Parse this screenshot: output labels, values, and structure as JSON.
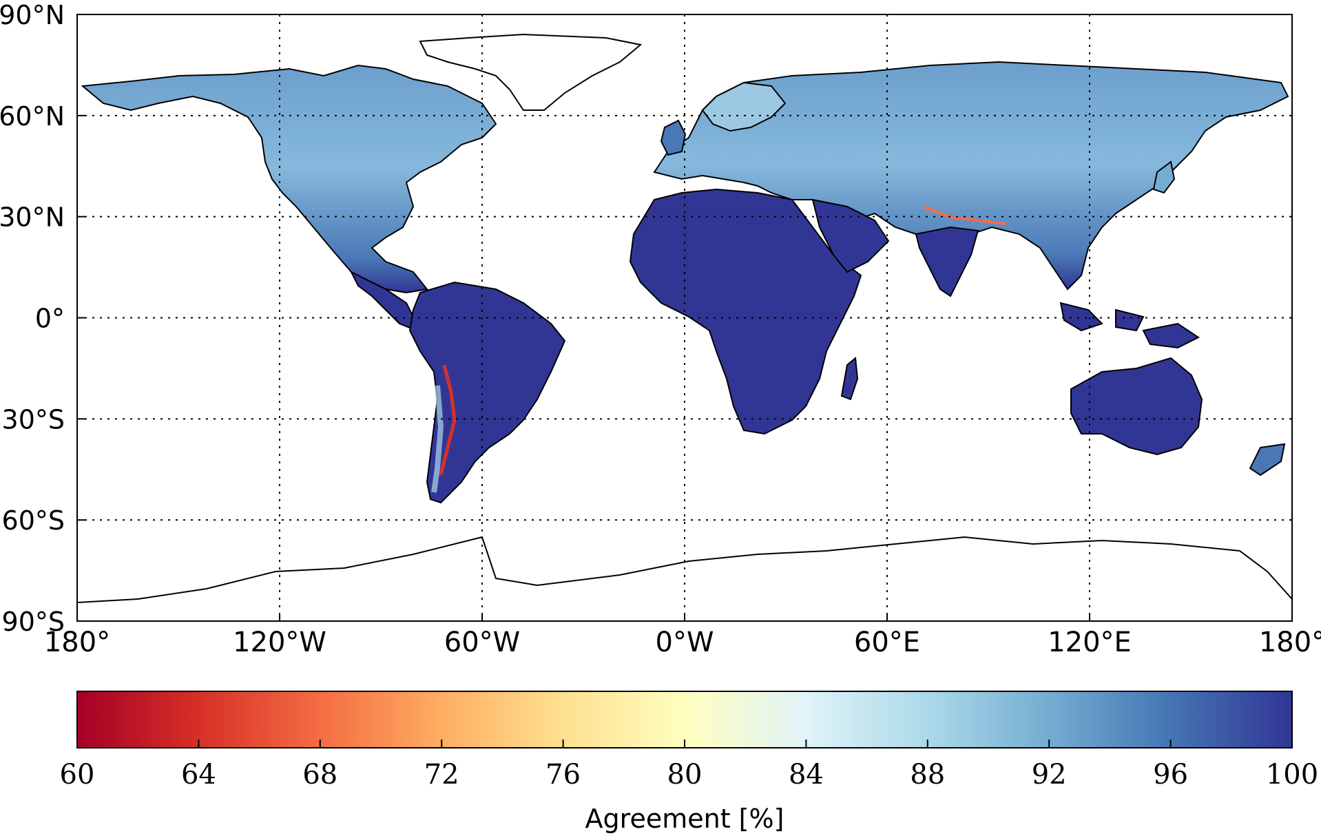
{
  "map": {
    "projection": "equirectangular",
    "lon_range": [
      -180,
      180
    ],
    "lat_range": [
      -90,
      90
    ],
    "x_ticks": [
      {
        "lon": -180,
        "label": "180°"
      },
      {
        "lon": -120,
        "label": "120°W"
      },
      {
        "lon": -60,
        "label": "60°W"
      },
      {
        "lon": 0,
        "label": "0°W"
      },
      {
        "lon": 60,
        "label": "60°E"
      },
      {
        "lon": 120,
        "label": "120°E"
      },
      {
        "lon": 180,
        "label": "180°"
      }
    ],
    "y_ticks": [
      {
        "lat": 90,
        "label": "90°N"
      },
      {
        "lat": 60,
        "label": "60°N"
      },
      {
        "lat": 30,
        "label": "30°N"
      },
      {
        "lat": 0,
        "label": "0°"
      },
      {
        "lat": -30,
        "label": "30°S"
      },
      {
        "lat": -60,
        "label": "60°S"
      },
      {
        "lat": -90,
        "label": "90°S"
      }
    ],
    "grid": "dotted",
    "ocean_color": "#ffffff",
    "coastline_color": "#000000",
    "tropics_color": "#313695"
  },
  "colorbar": {
    "label": "Agreement [%]",
    "min": 60,
    "max": 100,
    "ticks": [
      60,
      64,
      68,
      72,
      76,
      80,
      84,
      88,
      92,
      96,
      100
    ],
    "colormap": "RdYlBu",
    "colors": [
      "#a50026",
      "#d73027",
      "#f46d43",
      "#fdae61",
      "#fee090",
      "#ffffbf",
      "#e0f3f8",
      "#abd9e9",
      "#74add1",
      "#4575b4",
      "#313695"
    ]
  }
}
